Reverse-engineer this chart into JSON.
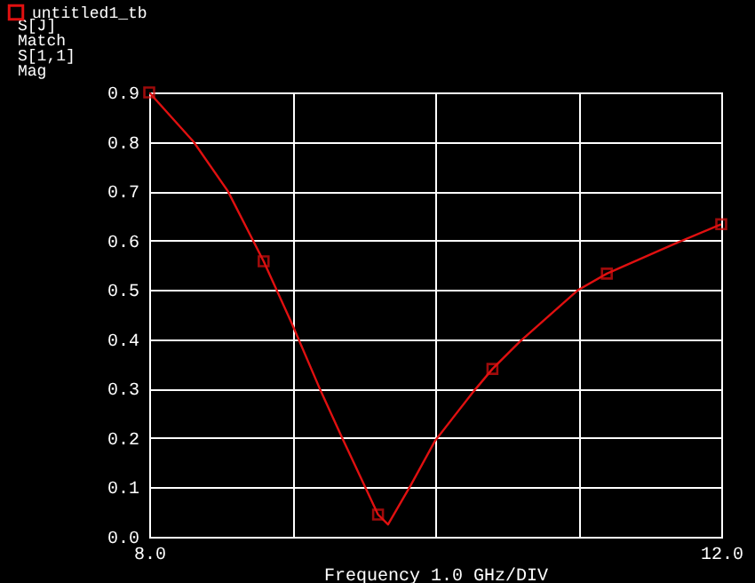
{
  "chart_data": {
    "type": "line",
    "xlabel": "Frequency 1.0 GHz/DIV",
    "annotations": [
      "S[J]",
      "Match",
      "S[1,1]",
      "Mag"
    ],
    "series": [
      {
        "name": "untitled1_tb",
        "color": "#e01010",
        "type": "line",
        "marker": "none",
        "x": [
          8.0,
          8.31,
          8.55,
          8.8,
          9.0,
          9.2,
          9.35,
          9.6,
          9.67,
          9.83,
          10.0,
          10.27,
          10.4,
          10.59,
          11.0,
          11.2,
          11.67,
          12.0
        ],
        "values": [
          0.9,
          0.8,
          0.7,
          0.558,
          0.43,
          0.295,
          0.2,
          0.045,
          0.025,
          0.105,
          0.195,
          0.295,
          0.34,
          0.395,
          0.5,
          0.533,
          0.593,
          0.633
        ]
      },
      {
        "color": "#e01010",
        "type": "scatter",
        "marker": "square",
        "x": [
          8.0,
          8.8,
          9.6,
          10.4,
          11.2,
          12.0
        ],
        "values": [
          0.9,
          0.558,
          0.045,
          0.34,
          0.533,
          0.633
        ]
      }
    ],
    "xlim": [
      8.0,
      12.0
    ],
    "xticks": [
      {
        "value": 8.0,
        "label": "8.0"
      },
      {
        "value": 9,
        "label": null
      },
      {
        "value": 10,
        "label": null
      },
      {
        "value": 11,
        "label": null
      },
      {
        "value": 12.0,
        "label": "12.0"
      }
    ],
    "ylim": [
      0.0,
      0.9
    ],
    "yticks": [
      {
        "value": 0,
        "label": "0.0"
      },
      0.1,
      0.2,
      0.3,
      0.4,
      0.5,
      0.6,
      0.7,
      0.8,
      0.9
    ],
    "grid": true,
    "legend": "top left"
  }
}
